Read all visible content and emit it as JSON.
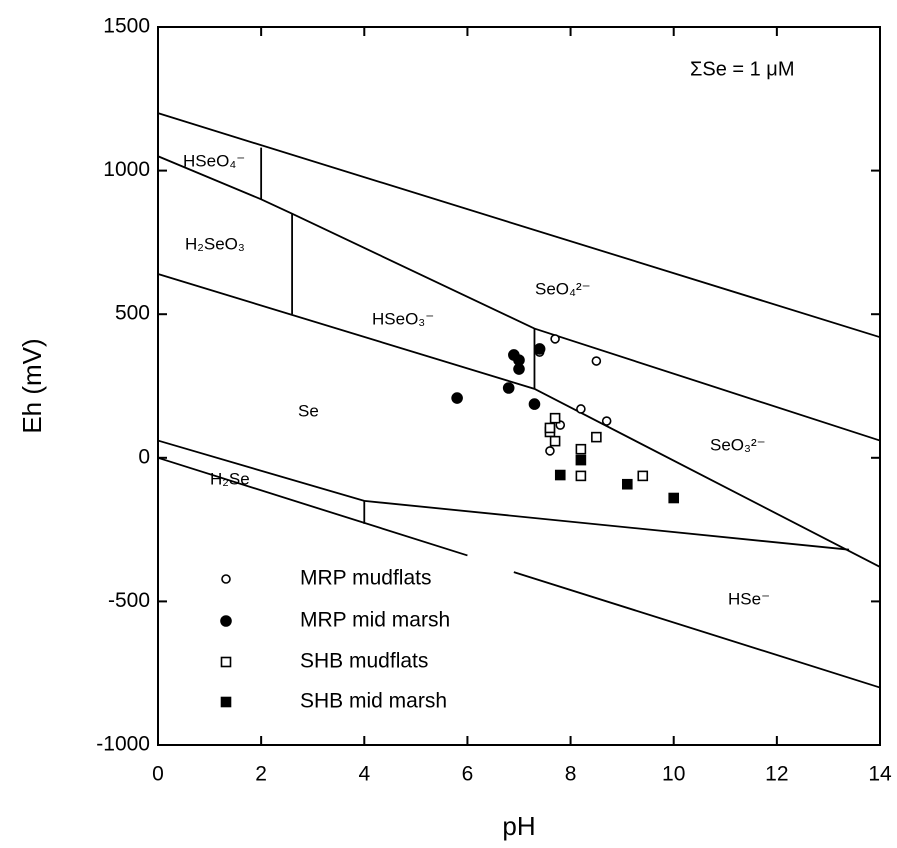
{
  "chart_data": {
    "type": "scatter",
    "xlabel": "pH",
    "ylabel": "Eh (mV)",
    "xlim": [
      0,
      14
    ],
    "ylim": [
      -1000,
      1500
    ],
    "xticks": [
      0,
      2,
      4,
      6,
      8,
      10,
      12,
      14
    ],
    "yticks": [
      -1000,
      -500,
      0,
      500,
      1000,
      1500
    ],
    "annotation": "ΣSe = 1 μM",
    "regions": [
      "HSeO₄⁻",
      "H₂SeO₃",
      "HSeO₃⁻",
      "SeO₄²⁻",
      "Se",
      "SeO₃²⁻",
      "H₂Se",
      "HSe⁻"
    ],
    "boundaries": [
      {
        "x": [
          0,
          14
        ],
        "y": [
          1200,
          420
        ]
      },
      {
        "x": [
          0,
          2,
          2.6,
          7.3,
          14
        ],
        "y": [
          1050,
          900,
          850,
          450,
          60
        ]
      },
      {
        "x": [
          2,
          2
        ],
        "y": [
          900,
          1080
        ]
      },
      {
        "x": [
          2.6,
          2.6
        ],
        "y": [
          850,
          500
        ]
      },
      {
        "x": [
          0,
          7.3,
          14
        ],
        "y": [
          640,
          240,
          -380
        ]
      },
      {
        "x": [
          7.3,
          7.3
        ],
        "y": [
          240,
          450
        ]
      },
      {
        "x": [
          0,
          4,
          13.4
        ],
        "y": [
          60,
          -150,
          -320
        ]
      },
      {
        "x": [
          4,
          4
        ],
        "y": [
          -150,
          -230
        ]
      },
      {
        "x": [
          0,
          6,
          null,
          6.9,
          14
        ],
        "y": [
          0,
          -340,
          null,
          -398,
          -800
        ]
      }
    ],
    "series": [
      {
        "name": "MRP mudflats",
        "marker": "circle",
        "filled": false,
        "color": "#000000",
        "x": [
          7.4,
          7.7,
          8.5,
          8.2,
          8.7,
          7.8,
          7.6,
          7.6
        ],
        "values": [
          368,
          414,
          337,
          170,
          128,
          114,
          97,
          24
        ]
      },
      {
        "name": "MRP mid marsh",
        "marker": "circle",
        "filled": true,
        "color": "#000000",
        "x": [
          5.8,
          6.8,
          6.9,
          7.0,
          7.0,
          7.3,
          7.4
        ],
        "values": [
          208,
          243,
          358,
          340,
          309,
          187,
          379
        ]
      },
      {
        "name": "SHB mudflats",
        "marker": "square",
        "filled": false,
        "color": "#000000",
        "x": [
          7.7,
          7.6,
          7.7,
          8.2,
          8.2,
          8.5,
          9.4,
          7.6
        ],
        "values": [
          138,
          90,
          58,
          30,
          -63,
          72,
          -63,
          104
        ]
      },
      {
        "name": "SHB mid marsh",
        "marker": "square",
        "filled": true,
        "color": "#000000",
        "x": [
          7.8,
          8.2,
          9.1,
          10.0
        ],
        "values": [
          -60,
          -8,
          -92,
          -140
        ]
      }
    ]
  }
}
